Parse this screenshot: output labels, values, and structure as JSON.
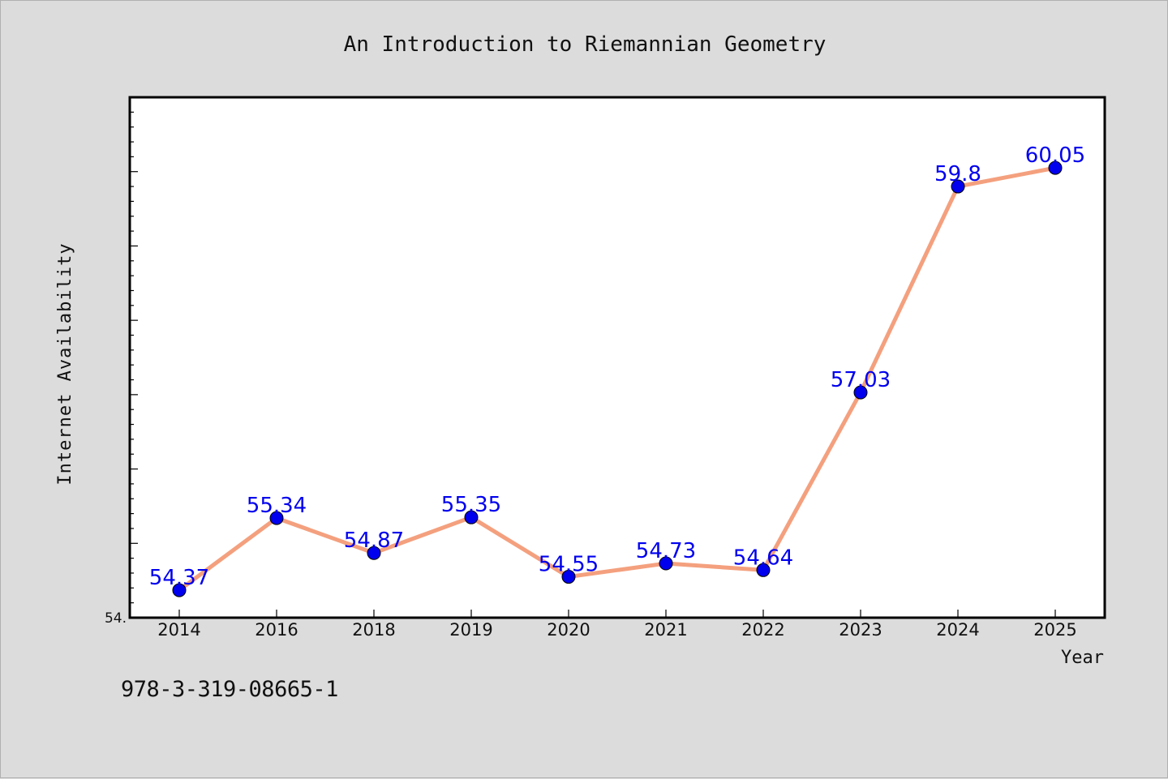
{
  "chart_data": {
    "type": "line",
    "title": "An Introduction to Riemannian Geometry",
    "xlabel": "Year",
    "ylabel": "Internet Availability",
    "categories": [
      "2014",
      "2016",
      "2018",
      "2019",
      "2020",
      "2021",
      "2022",
      "2023",
      "2024",
      "2025"
    ],
    "series": [
      {
        "values": [
          54.37,
          55.34,
          54.87,
          55.35,
          54.55,
          54.73,
          54.64,
          57.03,
          59.8,
          60.05
        ]
      }
    ],
    "data_labels": [
      "54.37",
      "55.34",
      "54.87",
      "55.35",
      "54.55",
      "54.73",
      "54.64",
      "57.03",
      "59.8",
      "60.05"
    ],
    "y_tick_label": "54.",
    "ylim": [
      54.0,
      61.0
    ],
    "grid": false,
    "line_color": "#f4a07e",
    "marker_color": "#0000ee",
    "label_color": "#0000ee"
  },
  "footer": {
    "isbn": "978-3-319-08665-1"
  }
}
